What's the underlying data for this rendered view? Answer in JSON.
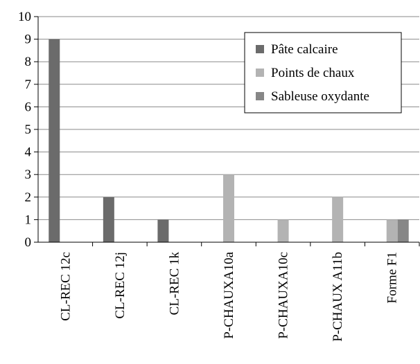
{
  "chart_data": {
    "type": "bar",
    "title": "",
    "xlabel": "",
    "ylabel": "",
    "ylim": [
      0,
      10
    ],
    "yticks": [
      0,
      1,
      2,
      3,
      4,
      5,
      6,
      7,
      8,
      9,
      10
    ],
    "grid": true,
    "legend_position": "top-right",
    "categories": [
      "CL-REC 12c",
      "CL-REC 12j",
      "CL-REC 1k",
      "P-CHAUXA10a",
      "P-CHAUXA10c",
      "P-CHAUX A11b",
      "Forme F1"
    ],
    "series": [
      {
        "name": "Pâte calcaire",
        "color": "#6b6b6b",
        "values": [
          9,
          2,
          1,
          0,
          0,
          0,
          0
        ]
      },
      {
        "name": "Points de chaux",
        "color": "#b3b3b3",
        "values": [
          0,
          0,
          0,
          3,
          1,
          2,
          1
        ]
      },
      {
        "name": "Sableuse oxydante",
        "color": "#878787",
        "values": [
          0,
          0,
          0,
          0,
          0,
          0,
          1
        ]
      }
    ]
  }
}
